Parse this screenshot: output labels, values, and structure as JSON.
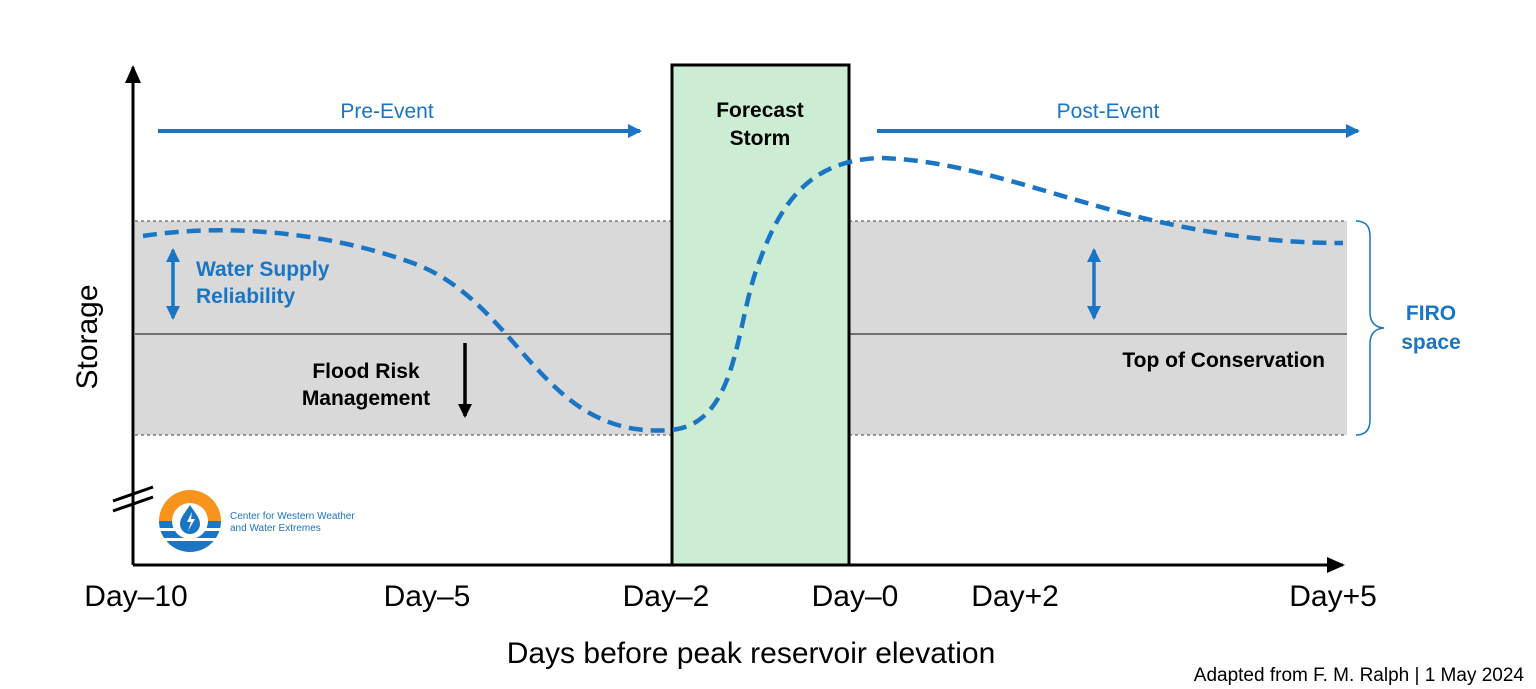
{
  "colors": {
    "blue": "#1a75c4",
    "band": "#d9d9d9",
    "storm_fill": "#ccecd3",
    "axis": "#000000"
  },
  "labels": {
    "pre_event": "Pre-Event",
    "post_event": "Post-Event",
    "forecast_line1": "Forecast",
    "forecast_line2": "Storm",
    "water_supply_line1": "Water Supply",
    "water_supply_line2": "Reliability",
    "flood_line1": "Flood Risk",
    "flood_line2": "Management",
    "top_conservation": "Top of Conservation",
    "firo_line1": "FIRO",
    "firo_line2": "space",
    "y_axis": "Storage",
    "x_axis": "Days before peak reservoir elevation",
    "attribution": "Adapted from F. M. Ralph | 1 May 2024",
    "logo_line1": "Center for Western Weather",
    "logo_line2": "and Water Extremes"
  },
  "x_ticks": [
    "Day–10",
    "Day–5",
    "Day–2",
    "Day–0",
    "Day+2",
    "Day+5"
  ],
  "icons": {
    "logo": "cw3e-logo-icon",
    "arrows": [
      "pre-event-arrow-icon",
      "post-event-arrow-icon",
      "water-supply-double-arrow-icon",
      "post-event-double-arrow-icon",
      "flood-risk-down-arrow-icon"
    ],
    "brace": "firo-brace-icon"
  }
}
